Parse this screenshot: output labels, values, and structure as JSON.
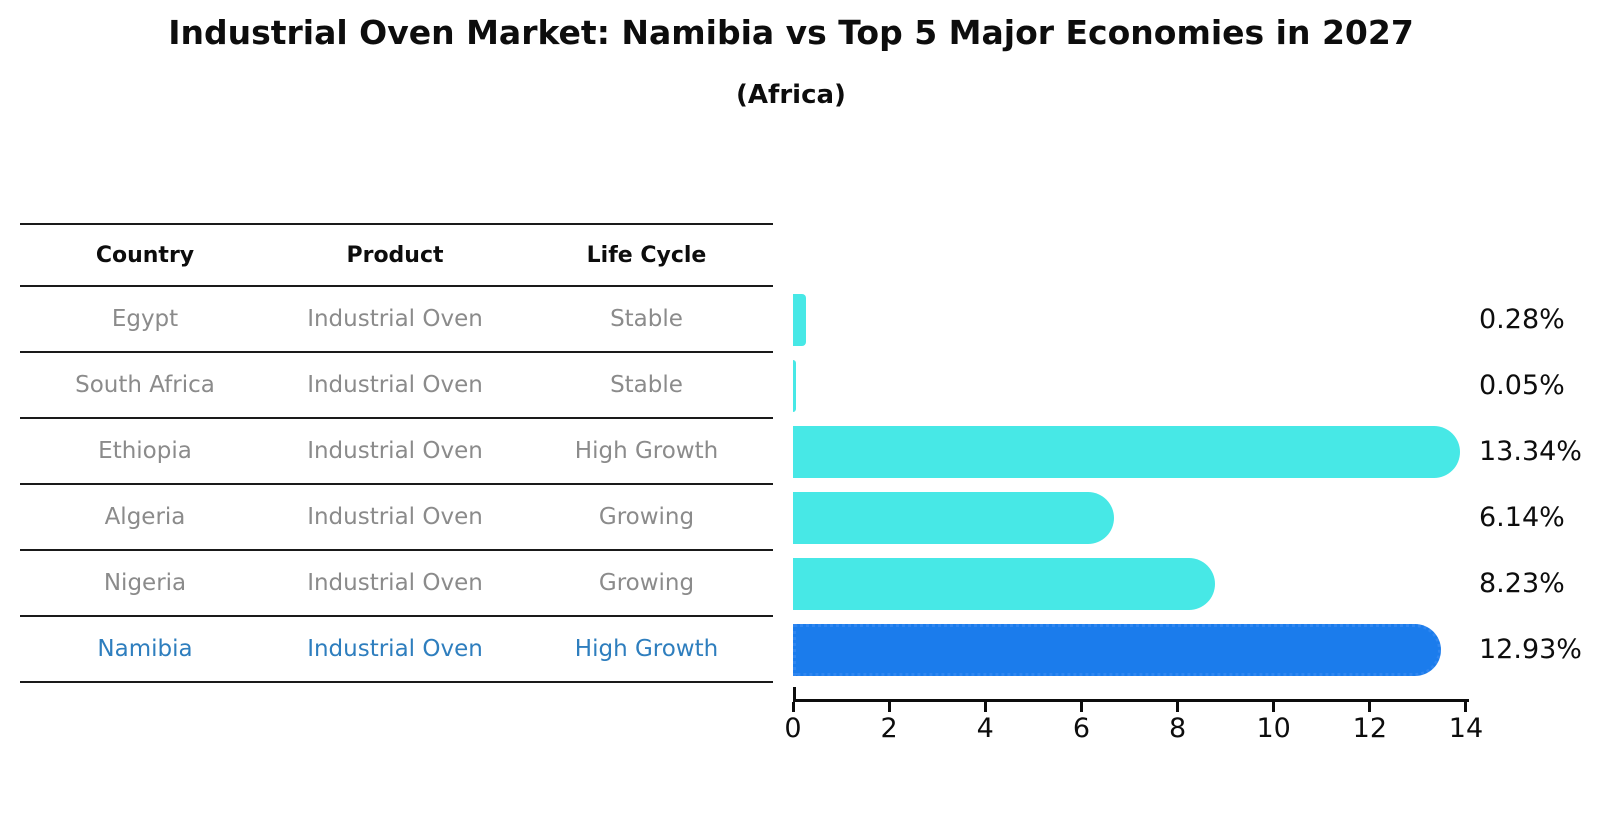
{
  "title": "Industrial Oven Market: Namibia vs Top 5 Major Economies in 2027",
  "subtitle": "(Africa)",
  "colors": {
    "bar_default": "#47e8e6",
    "bar_highlight": "#1b7cec",
    "bar_highlight_border": "#2f86f0",
    "highlight_text": "#2e7ebe",
    "row_text": "#8b8b8b",
    "axis": "#0d0d0d"
  },
  "table": {
    "columns": [
      "Country",
      "Product",
      "Life Cycle"
    ],
    "rows": [
      {
        "country": "Egypt",
        "product": "Industrial Oven",
        "life_cycle": "Stable",
        "highlight": false
      },
      {
        "country": "South Africa",
        "product": "Industrial Oven",
        "life_cycle": "Stable",
        "highlight": false
      },
      {
        "country": "Ethiopia",
        "product": "Industrial Oven",
        "life_cycle": "High Growth",
        "highlight": false
      },
      {
        "country": "Algeria",
        "product": "Industrial Oven",
        "life_cycle": "Growing",
        "highlight": false
      },
      {
        "country": "Nigeria",
        "product": "Industrial Oven",
        "life_cycle": "Growing",
        "highlight": true
      }
    ],
    "highlight_row": {
      "country": "Namibia",
      "product": "Industrial Oven",
      "life_cycle": "High Growth"
    }
  },
  "chart_data": {
    "type": "bar",
    "orientation": "horizontal",
    "title": "Industrial Oven Market: Namibia vs Top 5 Major Economies in 2027 (Africa)",
    "categories": [
      "Egypt",
      "South Africa",
      "Ethiopia",
      "Algeria",
      "Nigeria",
      "Namibia"
    ],
    "values": [
      0.28,
      0.05,
      13.34,
      6.14,
      8.23,
      12.93
    ],
    "value_labels": [
      "0.28%",
      "0.05%",
      "13.34%",
      "6.14%",
      "8.23%",
      "12.93%"
    ],
    "highlight_category": "Namibia",
    "x_ticks": [
      0,
      2,
      4,
      6,
      8,
      10,
      12,
      14
    ],
    "xlim": [
      0,
      14
    ],
    "xlabel": "",
    "ylabel": "",
    "grid": false,
    "legend": false
  }
}
